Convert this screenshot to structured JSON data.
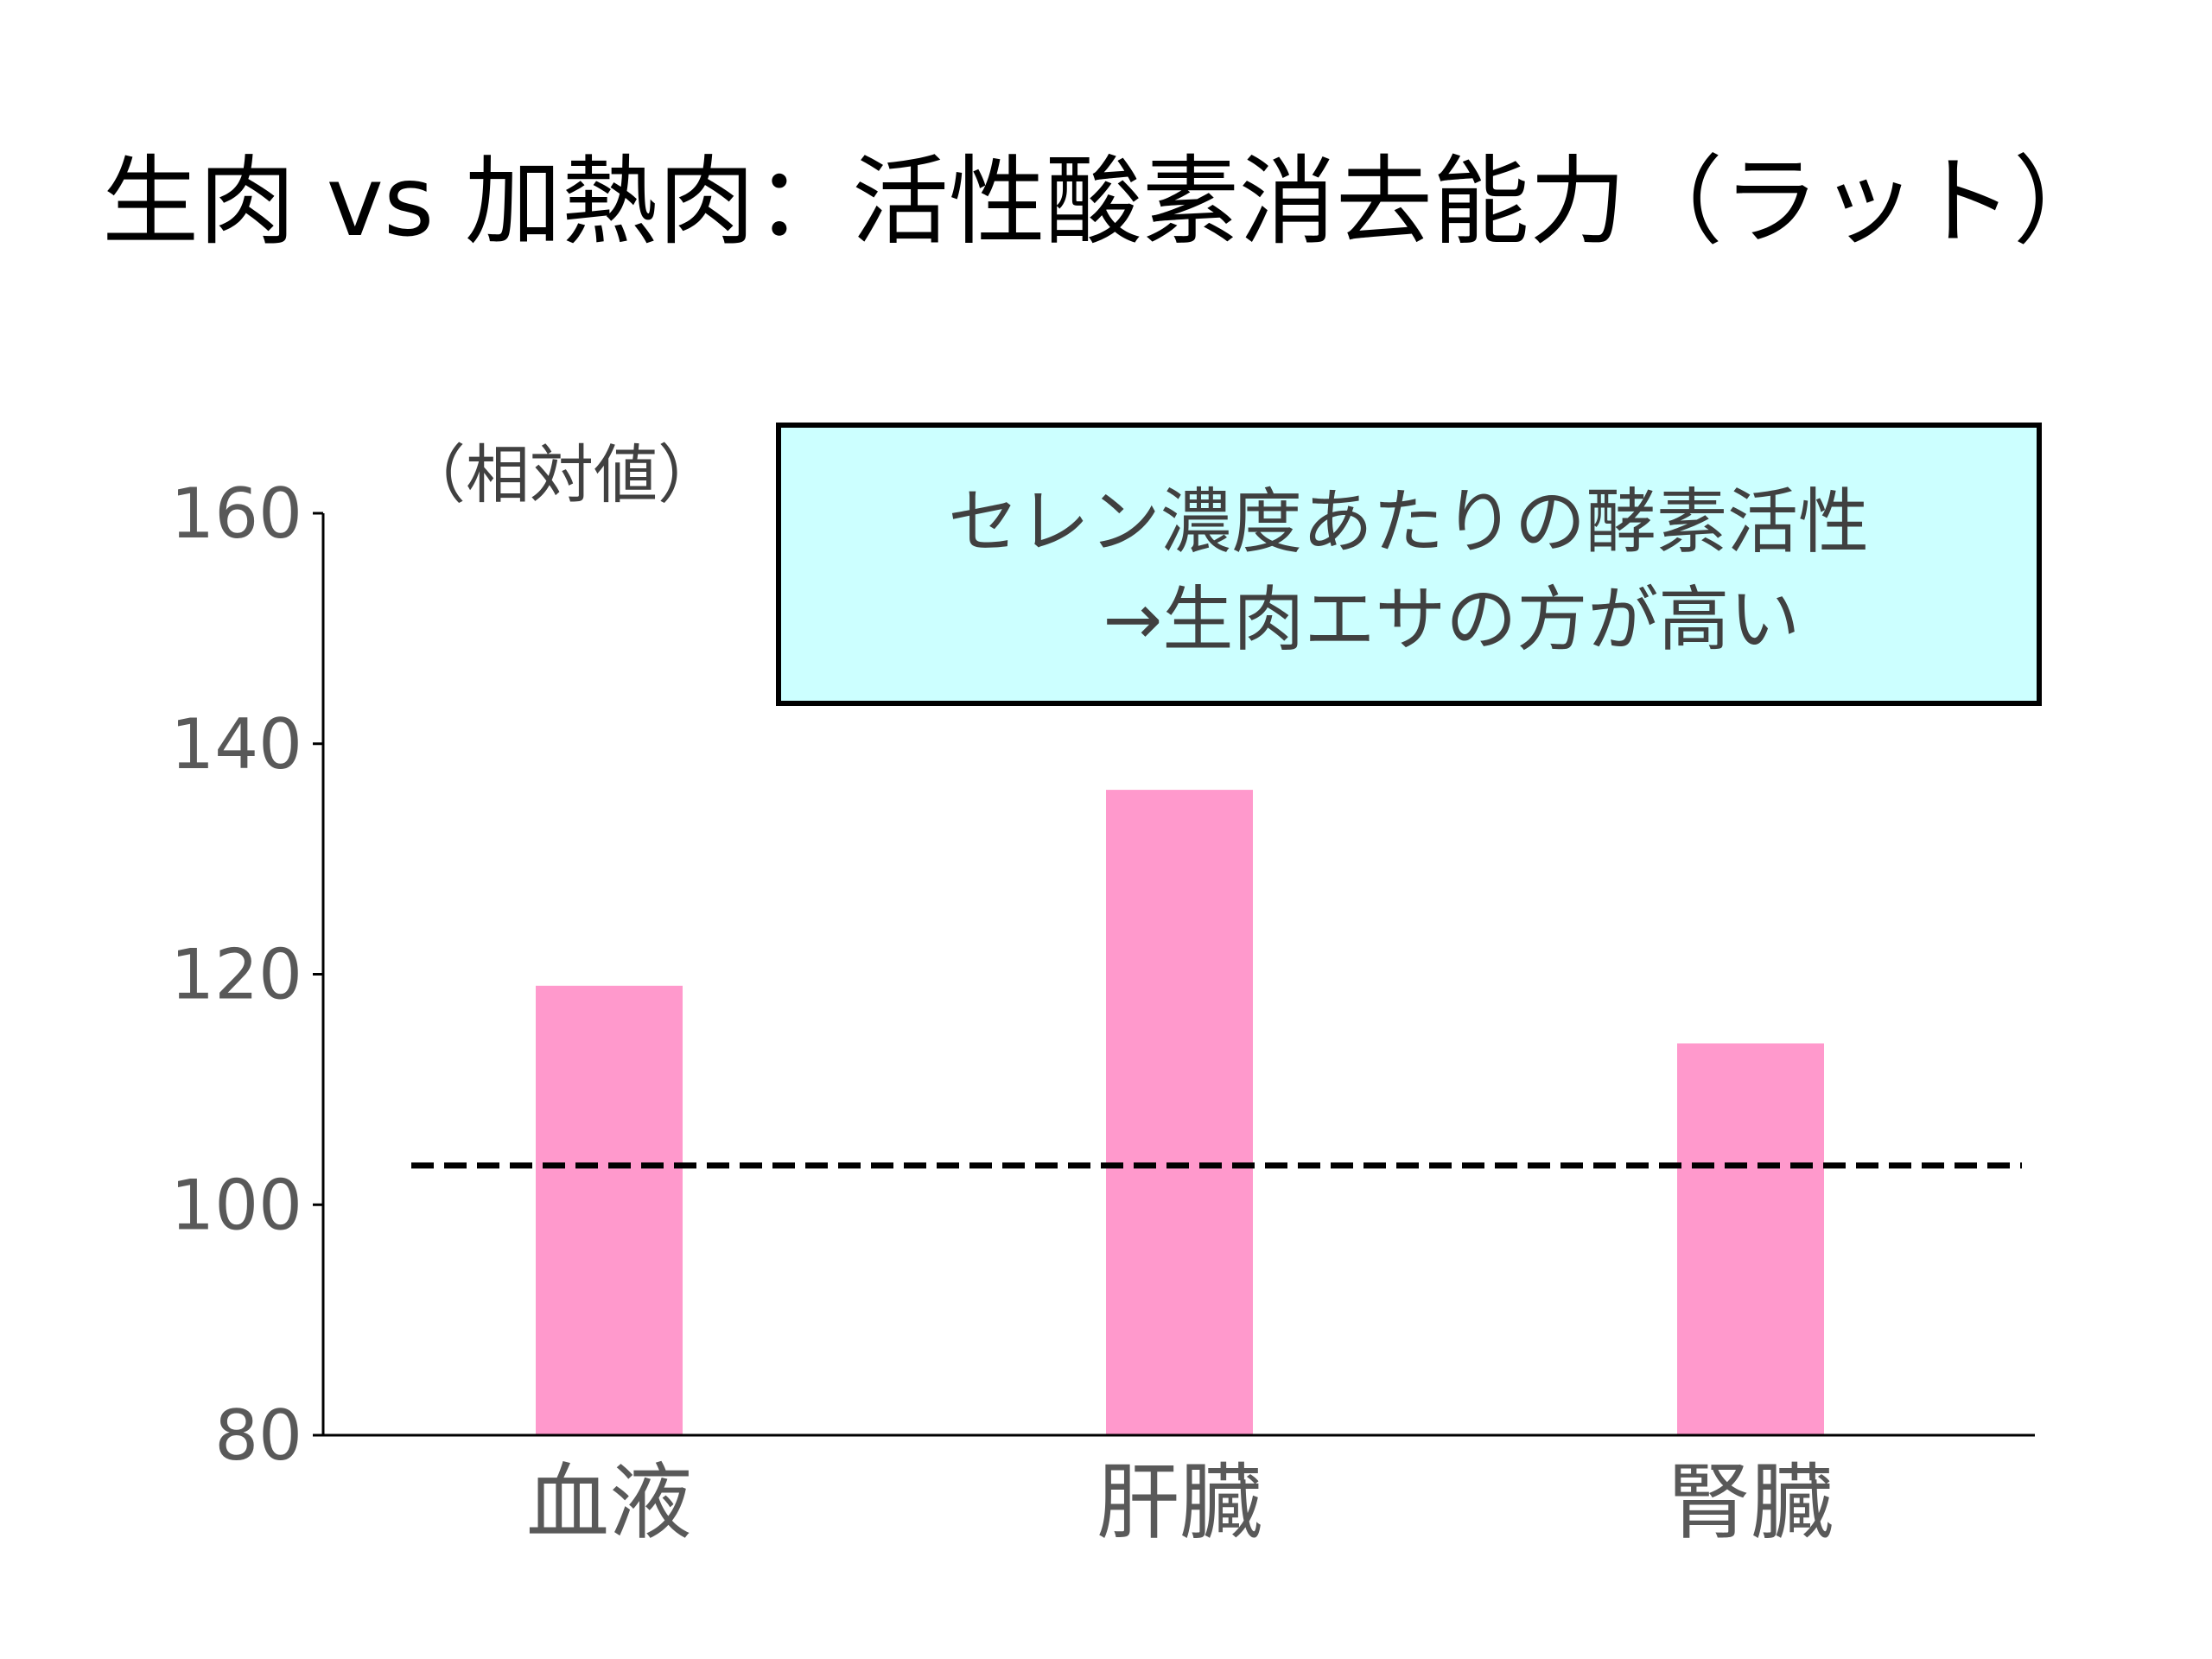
{
  "colors": {
    "bar": "#ff99cc",
    "annotation_bg": "#ccffff",
    "axis": "#000000",
    "text": "#595959"
  },
  "chart_data": {
    "type": "bar",
    "title": "生肉 vs 加熱肉：活性酸素消去能力（ラット）",
    "ylabel": "（相対値）",
    "xlabel": "",
    "categories": [
      "血液",
      "肝臓",
      "腎臓"
    ],
    "values": [
      119,
      136,
      114
    ],
    "ylim": [
      80,
      160
    ],
    "yticks": [
      80,
      100,
      120,
      140,
      160
    ],
    "reference_line": {
      "value": 103.4,
      "style": "dashed"
    },
    "annotation": {
      "line1": "セレン濃度あたりの酵素活性",
      "line2": "→生肉エサの方が高い",
      "placement": "top-right"
    },
    "grid": false
  }
}
